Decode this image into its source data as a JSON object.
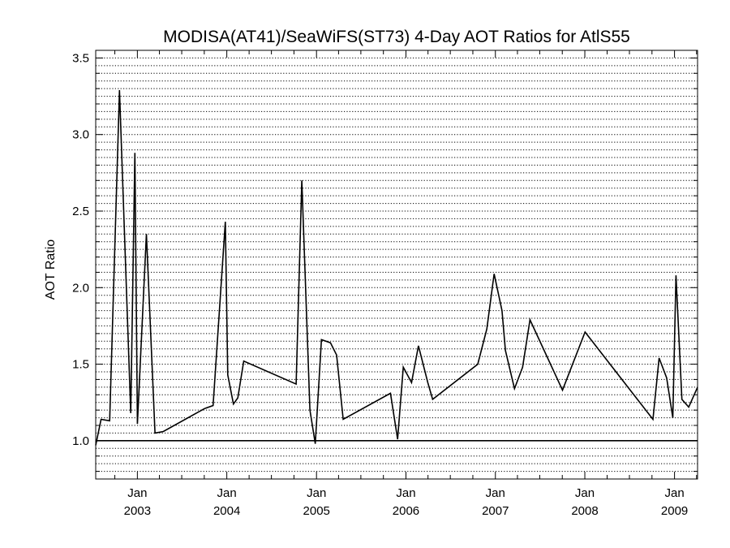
{
  "chart_data": {
    "type": "line",
    "title": "MODISA(AT41)/SeaWiFS(ST73) 4-Day AOT Ratios for AtlS55",
    "xlabel": "",
    "ylabel": "AOT Ratio",
    "x_range": [
      "2002-07-15",
      "2009-04-05"
    ],
    "ylim": [
      0.75,
      3.55
    ],
    "y_ticks": [
      1.0,
      1.5,
      2.0,
      2.5,
      3.0,
      3.5
    ],
    "y_tick_labels": [
      "1.0",
      "1.5",
      "2.0",
      "2.5",
      "3.0",
      "3.5"
    ],
    "x_ticks": [
      {
        "date": "2003-01-01",
        "label_top": "Jan",
        "label_bottom": "2003"
      },
      {
        "date": "2004-01-01",
        "label_top": "Jan",
        "label_bottom": "2004"
      },
      {
        "date": "2005-01-01",
        "label_top": "Jan",
        "label_bottom": "2005"
      },
      {
        "date": "2006-01-01",
        "label_top": "Jan",
        "label_bottom": "2006"
      },
      {
        "date": "2007-01-01",
        "label_top": "Jan",
        "label_bottom": "2007"
      },
      {
        "date": "2008-01-01",
        "label_top": "Jan",
        "label_bottom": "2008"
      },
      {
        "date": "2009-01-01",
        "label_top": "Jan",
        "label_bottom": "2009"
      }
    ],
    "grid": true,
    "reference_line": 1.0,
    "series": [
      {
        "x": [
          "2002-07-15",
          "2002-08-06",
          "2002-09-10",
          "2002-10-20",
          "2002-12-05",
          "2002-12-22",
          "2003-01-01",
          "2003-02-07",
          "2003-03-14",
          "2003-04-17",
          "2003-10-02",
          "2003-11-06",
          "2003-12-26",
          "2004-01-05",
          "2004-01-28",
          "2004-02-15",
          "2004-03-10",
          "2004-10-10",
          "2004-11-02",
          "2004-12-05",
          "2004-12-27",
          "2005-01-21",
          "2005-02-27",
          "2005-03-24",
          "2005-04-20",
          "2005-10-30",
          "2005-11-28",
          "2005-12-21",
          "2006-01-24",
          "2006-02-21",
          "2006-03-31",
          "2006-04-20",
          "2006-10-21",
          "2006-11-27",
          "2006-12-27",
          "2007-01-28",
          "2007-02-11",
          "2007-03-20",
          "2007-04-22",
          "2007-05-22",
          "2007-10-02",
          "2008-01-02",
          "2008-10-05",
          "2008-10-30",
          "2008-11-30",
          "2008-12-25",
          "2009-01-07",
          "2009-01-31",
          "2009-02-28",
          "2009-04-05"
        ],
        "y": [
          0.97,
          1.14,
          1.13,
          3.29,
          1.18,
          2.88,
          1.11,
          2.35,
          1.05,
          1.06,
          1.21,
          1.23,
          2.43,
          1.43,
          1.24,
          1.28,
          1.52,
          1.37,
          2.7,
          1.2,
          0.98,
          1.66,
          1.64,
          1.56,
          1.14,
          1.31,
          1.01,
          1.48,
          1.38,
          1.62,
          1.38,
          1.27,
          1.5,
          1.73,
          2.09,
          1.85,
          1.59,
          1.34,
          1.48,
          1.79,
          1.33,
          1.71,
          1.14,
          1.54,
          1.41,
          1.15,
          2.08,
          1.27,
          1.22,
          1.35
        ]
      }
    ]
  }
}
